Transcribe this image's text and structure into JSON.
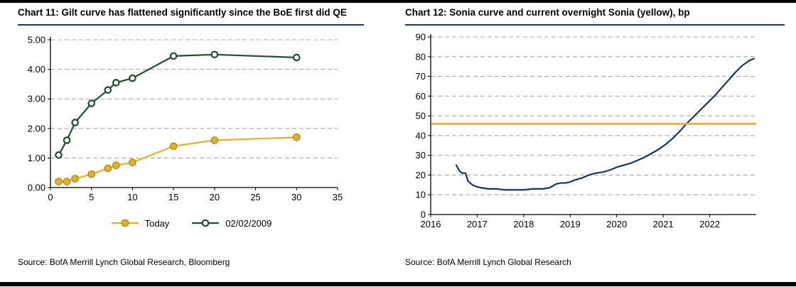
{
  "page": {
    "top_rule_color": "#000000",
    "bottom_rule_color": "#000000",
    "title_underline_color": "#1F3864",
    "grid_color": "#a8a8a8"
  },
  "panels": {
    "left": {
      "title": "Chart 11: Gilt curve has flattened significantly since the BoE first did QE",
      "source": "Source: BofA Merrill Lynch Global Research, Bloomberg"
    },
    "right": {
      "title": "Chart 12: Sonia curve and current overnight Sonia (yellow), bp",
      "source": "Source: BofA Merrill Lynch Global Research"
    }
  },
  "chart_data": [
    {
      "type": "line",
      "title": "Chart 11: Gilt curve has flattened significantly since the BoE first did QE",
      "x": [
        1,
        2,
        3,
        5,
        7,
        8,
        10,
        15,
        20,
        30
      ],
      "series": [
        {
          "name": "Today",
          "color": "#E3B128",
          "marker": "filled-circle",
          "values": [
            0.2,
            0.2,
            0.3,
            0.45,
            0.65,
            0.75,
            0.85,
            1.4,
            1.6,
            1.7
          ]
        },
        {
          "name": "02/02/2009",
          "color": "#1F4F2E",
          "marker": "open-circle",
          "values": [
            1.1,
            1.6,
            2.2,
            2.85,
            3.3,
            3.55,
            3.7,
            4.45,
            4.5,
            4.4
          ]
        }
      ],
      "xlim": [
        0,
        35
      ],
      "ylim": [
        0,
        5
      ],
      "xticks": [
        0,
        5,
        10,
        15,
        20,
        25,
        30,
        35
      ],
      "yticks": [
        0,
        1,
        2,
        3,
        4,
        5
      ],
      "ytick_labels": [
        "0.00",
        "1.00",
        "2.00",
        "3.00",
        "4.00",
        "5.00"
      ],
      "grid": "horizontal-dashed",
      "legend_position": "bottom-center"
    },
    {
      "type": "line",
      "title": "Chart 12: Sonia curve and current overnight Sonia (yellow), bp",
      "xlim": [
        2016,
        2023
      ],
      "ylim": [
        0,
        90
      ],
      "xticks": [
        2016,
        2017,
        2018,
        2019,
        2020,
        2021,
        2022
      ],
      "yticks": [
        0,
        10,
        20,
        30,
        40,
        50,
        60,
        70,
        80,
        90
      ],
      "ytick_labels": [
        "0",
        "10",
        "20",
        "30",
        "40",
        "50",
        "60",
        "70",
        "80",
        "90"
      ],
      "grid": "horizontal-dashed",
      "legend_position": "none",
      "series": [
        {
          "name": "Sonia curve",
          "color": "#17365D",
          "marker": "none",
          "x": [
            2016.55,
            2016.62,
            2016.68,
            2016.75,
            2016.8,
            2016.9,
            2017.0,
            2017.1,
            2017.25,
            2017.4,
            2017.6,
            2017.8,
            2018.0,
            2018.2,
            2018.4,
            2018.55,
            2018.7,
            2018.8,
            2018.9,
            2019.0,
            2019.1,
            2019.25,
            2019.4,
            2019.55,
            2019.7,
            2019.85,
            2020.0,
            2020.15,
            2020.3,
            2020.45,
            2020.6,
            2020.75,
            2020.9,
            2021.05,
            2021.2,
            2021.35,
            2021.5,
            2021.65,
            2021.8,
            2021.95,
            2022.1,
            2022.25,
            2022.4,
            2022.55,
            2022.7,
            2022.85,
            2022.95
          ],
          "values": [
            25,
            22,
            21,
            21,
            17,
            15,
            14,
            13.5,
            13,
            13,
            12.5,
            12.5,
            12.5,
            13,
            13,
            13.5,
            15.5,
            16,
            16,
            16.5,
            17.5,
            18.5,
            20,
            21,
            21.5,
            22.5,
            24,
            25,
            26,
            27.5,
            29,
            31,
            33,
            35.5,
            38.5,
            42,
            46,
            49.5,
            53,
            56.5,
            60,
            64,
            68,
            72,
            75.5,
            78,
            79
          ]
        },
        {
          "name": "Current overnight Sonia",
          "color": "#E3B128",
          "marker": "none",
          "render": "hline",
          "value": 46
        }
      ]
    }
  ]
}
